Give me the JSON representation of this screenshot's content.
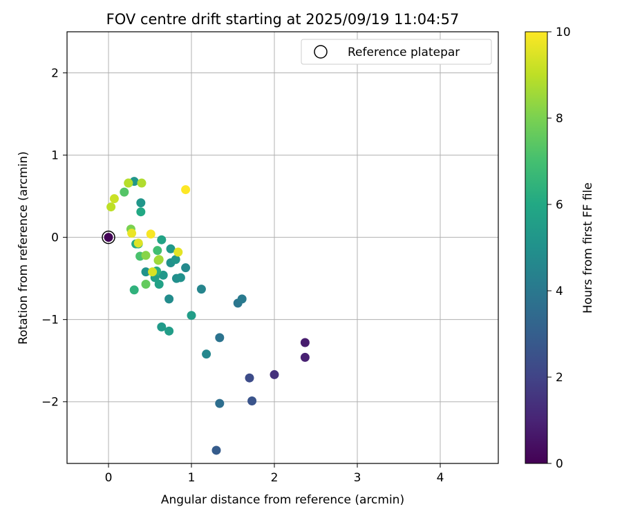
{
  "chart_data": {
    "type": "scatter",
    "title": "FOV centre drift starting at 2025/09/19 11:04:57",
    "xlabel": "Angular distance from reference (arcmin)",
    "ylabel": "Rotation from reference (arcmin)",
    "xlim": [
      -0.5,
      4.7
    ],
    "ylim": [
      -2.75,
      2.5
    ],
    "xticks": [
      0,
      1,
      2,
      3,
      4
    ],
    "xtick_labels": [
      "0",
      "1",
      "2",
      "3",
      "4"
    ],
    "yticks": [
      2,
      1,
      0,
      -1,
      -2
    ],
    "ytick_labels": [
      "2",
      "1",
      "0",
      "−1",
      "−2"
    ],
    "grid": true,
    "legend": {
      "position": "top-right",
      "label": "Reference platepar"
    },
    "reference_point": {
      "x": 0,
      "y": 0
    },
    "colorbar": {
      "label": "Hours from first FF file",
      "colormap": "viridis",
      "range": [
        0,
        10
      ],
      "ticks": [
        0,
        2,
        4,
        6,
        8,
        10
      ],
      "tick_labels": [
        "0",
        "2",
        "4",
        "6",
        "8",
        "10"
      ]
    },
    "series": [
      {
        "name": "FOV centre",
        "points": [
          {
            "x": 0.0,
            "y": 0.0,
            "c": 0.1
          },
          {
            "x": 2.37,
            "y": -1.28,
            "c": 0.8
          },
          {
            "x": 2.37,
            "y": -1.46,
            "c": 0.9
          },
          {
            "x": 2.0,
            "y": -1.67,
            "c": 1.4
          },
          {
            "x": 1.7,
            "y": -1.71,
            "c": 2.3
          },
          {
            "x": 1.73,
            "y": -1.99,
            "c": 2.6
          },
          {
            "x": 1.3,
            "y": -2.59,
            "c": 2.9
          },
          {
            "x": 1.34,
            "y": -2.02,
            "c": 3.6
          },
          {
            "x": 1.34,
            "y": -1.22,
            "c": 3.8
          },
          {
            "x": 1.56,
            "y": -0.8,
            "c": 3.9
          },
          {
            "x": 1.61,
            "y": -0.75,
            "c": 4.1
          },
          {
            "x": 1.12,
            "y": -0.63,
            "c": 4.5
          },
          {
            "x": 1.18,
            "y": -1.42,
            "c": 4.6
          },
          {
            "x": 0.73,
            "y": -0.75,
            "c": 4.8
          },
          {
            "x": 0.93,
            "y": -0.37,
            "c": 4.7
          },
          {
            "x": 0.82,
            "y": -0.5,
            "c": 4.9
          },
          {
            "x": 0.87,
            "y": -0.49,
            "c": 5.0
          },
          {
            "x": 0.75,
            "y": -0.31,
            "c": 5.0
          },
          {
            "x": 0.81,
            "y": -0.27,
            "c": 5.2
          },
          {
            "x": 0.75,
            "y": -0.14,
            "c": 5.3
          },
          {
            "x": 0.66,
            "y": -0.46,
            "c": 5.3
          },
          {
            "x": 0.45,
            "y": -0.42,
            "c": 5.1
          },
          {
            "x": 0.39,
            "y": 0.42,
            "c": 5.2
          },
          {
            "x": 0.31,
            "y": 0.68,
            "c": 5.2
          },
          {
            "x": 0.64,
            "y": -1.09,
            "c": 5.4
          },
          {
            "x": 0.73,
            "y": -1.14,
            "c": 5.5
          },
          {
            "x": 1.0,
            "y": -0.95,
            "c": 5.5
          },
          {
            "x": 0.56,
            "y": -0.49,
            "c": 5.6
          },
          {
            "x": 0.61,
            "y": -0.57,
            "c": 5.7
          },
          {
            "x": 0.64,
            "y": -0.03,
            "c": 5.8
          },
          {
            "x": 0.36,
            "y": -0.08,
            "c": 5.9
          },
          {
            "x": 0.39,
            "y": 0.31,
            "c": 6.0
          },
          {
            "x": 0.33,
            "y": -0.08,
            "c": 6.1
          },
          {
            "x": 0.58,
            "y": -0.41,
            "c": 6.2
          },
          {
            "x": 0.31,
            "y": -0.64,
            "c": 6.4
          },
          {
            "x": 0.59,
            "y": -0.16,
            "c": 6.9
          },
          {
            "x": 0.38,
            "y": -0.23,
            "c": 7.1
          },
          {
            "x": 0.19,
            "y": 0.55,
            "c": 7.3
          },
          {
            "x": 0.45,
            "y": -0.57,
            "c": 7.6
          },
          {
            "x": 0.24,
            "y": 0.66,
            "c": 7.8
          },
          {
            "x": 0.27,
            "y": 0.1,
            "c": 8.0
          },
          {
            "x": 0.45,
            "y": -0.22,
            "c": 8.2
          },
          {
            "x": 0.6,
            "y": -0.28,
            "c": 8.4
          },
          {
            "x": 0.61,
            "y": -0.27,
            "c": 8.6
          },
          {
            "x": 0.4,
            "y": 0.66,
            "c": 8.8
          },
          {
            "x": 0.24,
            "y": 0.66,
            "c": 8.9
          },
          {
            "x": 0.03,
            "y": 0.37,
            "c": 9.0
          },
          {
            "x": 0.07,
            "y": 0.47,
            "c": 9.2
          },
          {
            "x": 0.53,
            "y": -0.42,
            "c": 9.4
          },
          {
            "x": 0.36,
            "y": -0.07,
            "c": 9.5
          },
          {
            "x": 0.84,
            "y": -0.18,
            "c": 9.6
          },
          {
            "x": 0.28,
            "y": 0.05,
            "c": 9.7
          },
          {
            "x": 0.51,
            "y": 0.04,
            "c": 9.9
          },
          {
            "x": 0.93,
            "y": 0.58,
            "c": 10.0
          }
        ]
      }
    ]
  }
}
